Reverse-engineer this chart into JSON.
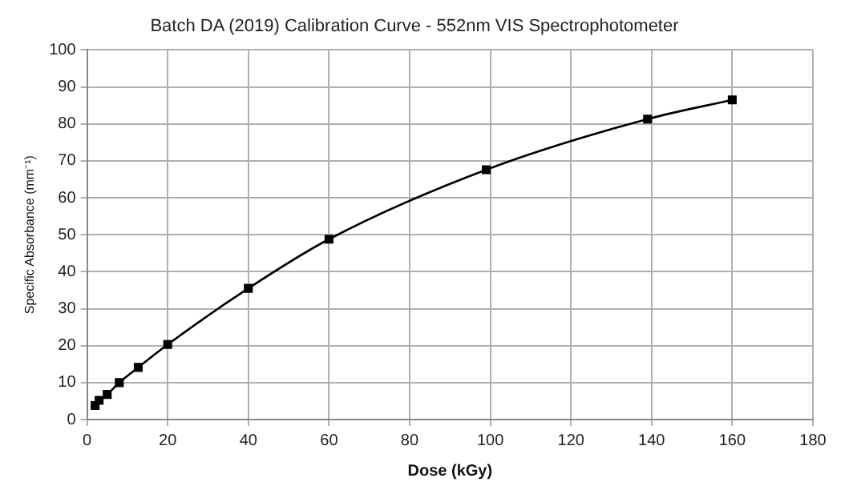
{
  "chart_data": {
    "type": "line",
    "title": "Batch DA (2019) Calibration Curve - 552nm VIS Spectrophotometer",
    "xlabel": "Dose (kGy)",
    "ylabel": "Specific Absorbance (mm⁻¹)",
    "x": [
      2,
      3,
      5,
      8,
      12.7,
      20,
      40,
      60,
      99,
      139,
      160
    ],
    "series": [
      {
        "color": "#000000",
        "values": [
          3.8,
          5.2,
          6.8,
          10,
          14.1,
          20.3,
          35.5,
          48.8,
          67.6,
          81.3,
          86.5
        ]
      }
    ],
    "xlim": [
      0,
      180
    ],
    "xticks": [
      0,
      20,
      40,
      60,
      80,
      100,
      120,
      140,
      160,
      180
    ],
    "ylim": [
      0,
      100
    ],
    "yticks": [
      0,
      10,
      20,
      30,
      40,
      50,
      60,
      70,
      80,
      90,
      100
    ],
    "grid": true,
    "legend": false,
    "marker": "square",
    "line_style": "solid"
  }
}
